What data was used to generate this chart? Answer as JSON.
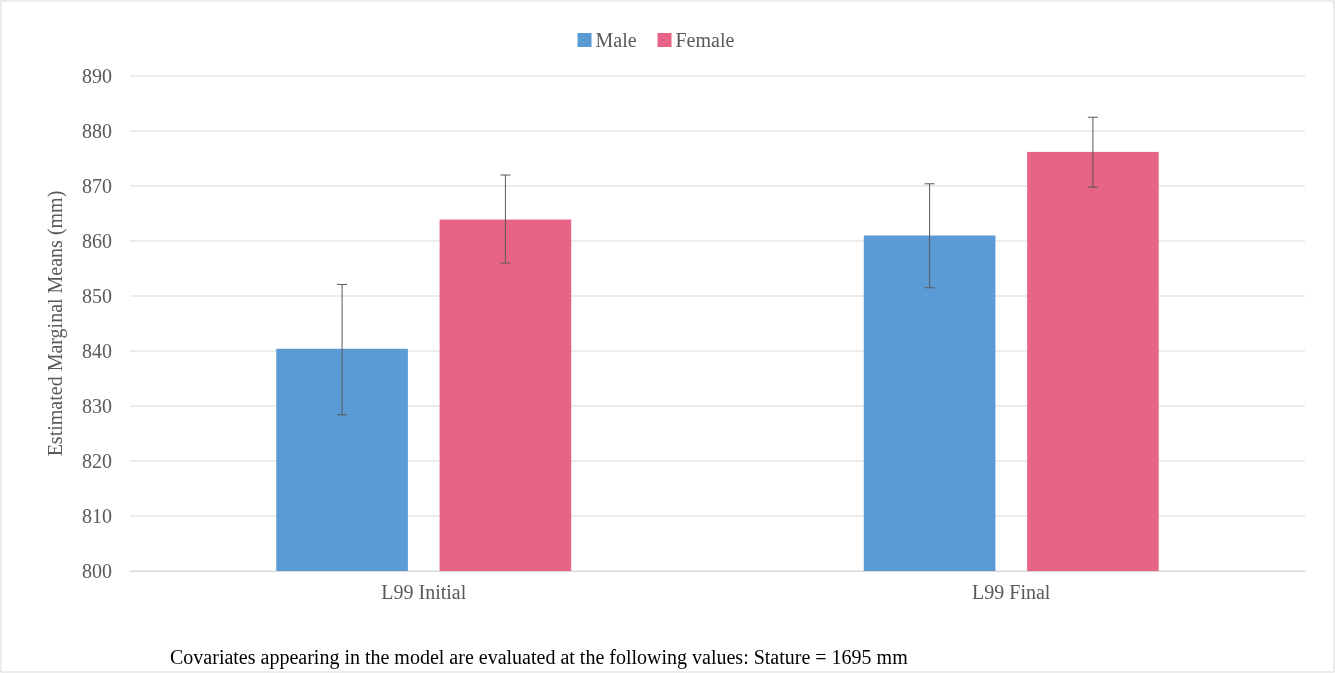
{
  "chart_data": {
    "type": "bar",
    "ylabel": "Estimated Marginal Means (mm)",
    "categories": [
      "L99 Initial",
      "L99 Final"
    ],
    "series": [
      {
        "name": "Male",
        "color": "#5b9bd5",
        "values": [
          840.4,
          861.0
        ],
        "errors": [
          [
            828.4,
            852.1
          ],
          [
            851.5,
            870.4
          ]
        ]
      },
      {
        "name": "Female",
        "color": "#e76486",
        "values": [
          863.9,
          876.2
        ],
        "errors": [
          [
            856.0,
            872.0
          ],
          [
            869.8,
            882.5
          ]
        ]
      }
    ],
    "ylim": [
      800,
      890
    ],
    "yticks": [
      800,
      810,
      820,
      830,
      840,
      850,
      860,
      870,
      880,
      890
    ],
    "grid": "y",
    "legend": "top",
    "annotations": [
      "Covariates appearing in the model are evaluated at the following values: Stature = 1695 mm"
    ]
  }
}
